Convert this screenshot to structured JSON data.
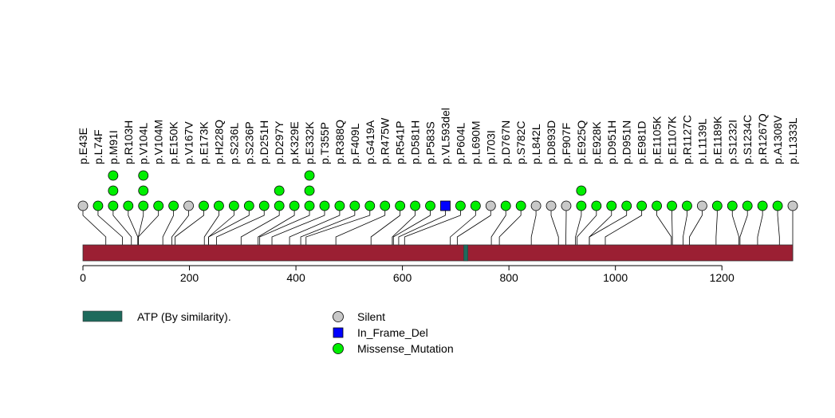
{
  "chart_data": {
    "type": "lollipop",
    "protein_length": 1333,
    "xlim": [
      0,
      1333
    ],
    "ticks": [
      0,
      200,
      400,
      600,
      800,
      1000,
      1200
    ],
    "domains": [
      {
        "name": "ATP (By similarity).",
        "start": 715,
        "end": 723
      }
    ],
    "mutations": [
      {
        "label": "p.E43E",
        "type": "Silent",
        "count": 1
      },
      {
        "label": "p.L74F",
        "type": "Missense_Mutation",
        "count": 1
      },
      {
        "label": "p.M91I",
        "type": "Missense_Mutation",
        "count": 3
      },
      {
        "label": "p.R103H",
        "type": "Missense_Mutation",
        "count": 1
      },
      {
        "label": "p.V104L",
        "type": "Missense_Mutation",
        "count": 3
      },
      {
        "label": "p.V104M",
        "type": "Missense_Mutation",
        "count": 1
      },
      {
        "label": "p.E150K",
        "type": "Missense_Mutation",
        "count": 1
      },
      {
        "label": "p.V167V",
        "type": "Silent",
        "count": 1
      },
      {
        "label": "p.E173K",
        "type": "Missense_Mutation",
        "count": 1
      },
      {
        "label": "p.H228Q",
        "type": "Missense_Mutation",
        "count": 1
      },
      {
        "label": "p.S236L",
        "type": "Missense_Mutation",
        "count": 1
      },
      {
        "label": "p.S236P",
        "type": "Missense_Mutation",
        "count": 1
      },
      {
        "label": "p.D251H",
        "type": "Missense_Mutation",
        "count": 1
      },
      {
        "label": "p.D297Y",
        "type": "Missense_Mutation",
        "count": 2
      },
      {
        "label": "p.K329E",
        "type": "Missense_Mutation",
        "count": 1
      },
      {
        "label": "p.E332K",
        "type": "Missense_Mutation",
        "count": 3
      },
      {
        "label": "p.T355P",
        "type": "Missense_Mutation",
        "count": 1
      },
      {
        "label": "p.R388Q",
        "type": "Missense_Mutation",
        "count": 1
      },
      {
        "label": "p.F409L",
        "type": "Missense_Mutation",
        "count": 1
      },
      {
        "label": "p.G419A",
        "type": "Missense_Mutation",
        "count": 1
      },
      {
        "label": "p.R475W",
        "type": "Missense_Mutation",
        "count": 1
      },
      {
        "label": "p.R541P",
        "type": "Missense_Mutation",
        "count": 1
      },
      {
        "label": "p.D581H",
        "type": "Missense_Mutation",
        "count": 1
      },
      {
        "label": "p.P583S",
        "type": "Missense_Mutation",
        "count": 1
      },
      {
        "label": "p.VL593del",
        "type": "In_Frame_Del",
        "count": 1
      },
      {
        "label": "p.P604L",
        "type": "Missense_Mutation",
        "count": 1
      },
      {
        "label": "p.L690M",
        "type": "Missense_Mutation",
        "count": 1
      },
      {
        "label": "p.I703I",
        "type": "Silent",
        "count": 1
      },
      {
        "label": "p.D767N",
        "type": "Missense_Mutation",
        "count": 1
      },
      {
        "label": "p.S782C",
        "type": "Missense_Mutation",
        "count": 1
      },
      {
        "label": "p.L842L",
        "type": "Silent",
        "count": 1
      },
      {
        "label": "p.D893D",
        "type": "Silent",
        "count": 1
      },
      {
        "label": "p.F907F",
        "type": "Silent",
        "count": 1
      },
      {
        "label": "p.E925Q",
        "type": "Missense_Mutation",
        "count": 2
      },
      {
        "label": "p.E928K",
        "type": "Missense_Mutation",
        "count": 1
      },
      {
        "label": "p.D951H",
        "type": "Missense_Mutation",
        "count": 1
      },
      {
        "label": "p.D951N",
        "type": "Missense_Mutation",
        "count": 1
      },
      {
        "label": "p.E981D",
        "type": "Missense_Mutation",
        "count": 1
      },
      {
        "label": "p.E1105K",
        "type": "Missense_Mutation",
        "count": 1
      },
      {
        "label": "p.E1107K",
        "type": "Missense_Mutation",
        "count": 1
      },
      {
        "label": "p.R1127C",
        "type": "Missense_Mutation",
        "count": 1
      },
      {
        "label": "p.L1139L",
        "type": "Silent",
        "count": 1
      },
      {
        "label": "p.E1189K",
        "type": "Missense_Mutation",
        "count": 1
      },
      {
        "label": "p.S1232I",
        "type": "Missense_Mutation",
        "count": 1
      },
      {
        "label": "p.S1234C",
        "type": "Missense_Mutation",
        "count": 1
      },
      {
        "label": "p.R1267Q",
        "type": "Missense_Mutation",
        "count": 1
      },
      {
        "label": "p.A1308V",
        "type": "Missense_Mutation",
        "count": 1
      },
      {
        "label": "p.L1333L",
        "type": "Silent",
        "count": 1
      }
    ],
    "legend": {
      "domains": [
        {
          "name": "ATP (By similarity).",
          "color": "#1e6a5c"
        }
      ],
      "types": [
        {
          "name": "Silent",
          "color": "#c8c8c8",
          "shape": "circle"
        },
        {
          "name": "In_Frame_Del",
          "color": "#0000ff",
          "shape": "square"
        },
        {
          "name": "Missense_Mutation",
          "color": "#00ee00",
          "shape": "circle"
        }
      ]
    },
    "colors": {
      "protein": "#9b1f33",
      "domain": "#1e6a5c",
      "Silent": "#c8c8c8",
      "In_Frame_Del": "#0000ff",
      "Missense_Mutation": "#00ee00"
    }
  }
}
